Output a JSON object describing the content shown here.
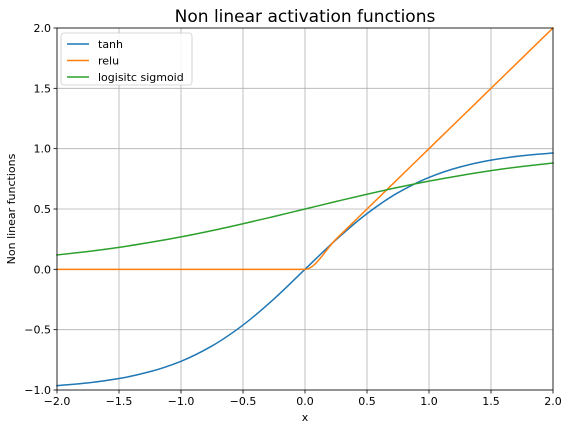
{
  "chart_data": {
    "type": "line",
    "title": "Non linear activation functions",
    "xlabel": "x",
    "ylabel": "Non linear functions",
    "xlim": [
      -2.0,
      2.0
    ],
    "ylim": [
      -1.0,
      2.0
    ],
    "grid": true,
    "legend_position": "upper-left",
    "xticks": [
      -2.0,
      -1.5,
      -1.0,
      -0.5,
      0.0,
      0.5,
      1.0,
      1.5,
      2.0
    ],
    "xtick_labels": [
      "−2.0",
      "−1.5",
      "−1.0",
      "−0.5",
      "0.0",
      "0.5",
      "1.0",
      "1.5",
      "2.0"
    ],
    "yticks": [
      -1.0,
      -0.5,
      0.0,
      0.5,
      1.0,
      1.5,
      2.0
    ],
    "ytick_labels": [
      "−1.0",
      "−0.5",
      "0.0",
      "0.5",
      "1.0",
      "1.5",
      "2.0"
    ],
    "x": [
      -2.0,
      -1.75,
      -1.5,
      -1.25,
      -1.0,
      -0.75,
      -0.5,
      -0.25,
      0.0,
      0.25,
      0.5,
      0.75,
      1.0,
      1.25,
      1.5,
      1.75,
      2.0
    ],
    "series": [
      {
        "name": "tanh",
        "color": "#1f77b4",
        "values": [
          -0.964,
          -0.941,
          -0.905,
          -0.848,
          -0.762,
          -0.635,
          -0.462,
          -0.245,
          0.0,
          0.245,
          0.462,
          0.635,
          0.762,
          0.848,
          0.905,
          0.941,
          0.964
        ]
      },
      {
        "name": "relu",
        "color": "#ff7f0e",
        "values": [
          0.0,
          0.0,
          0.0,
          0.0,
          0.0,
          0.0,
          0.0,
          0.0,
          0.0,
          0.25,
          0.5,
          0.75,
          1.0,
          1.25,
          1.5,
          1.75,
          2.0
        ]
      },
      {
        "name": "logisitc sigmoid",
        "color": "#2ca02c",
        "values": [
          0.119,
          0.148,
          0.182,
          0.223,
          0.269,
          0.321,
          0.378,
          0.438,
          0.5,
          0.562,
          0.622,
          0.679,
          0.731,
          0.777,
          0.818,
          0.852,
          0.881
        ]
      }
    ]
  }
}
